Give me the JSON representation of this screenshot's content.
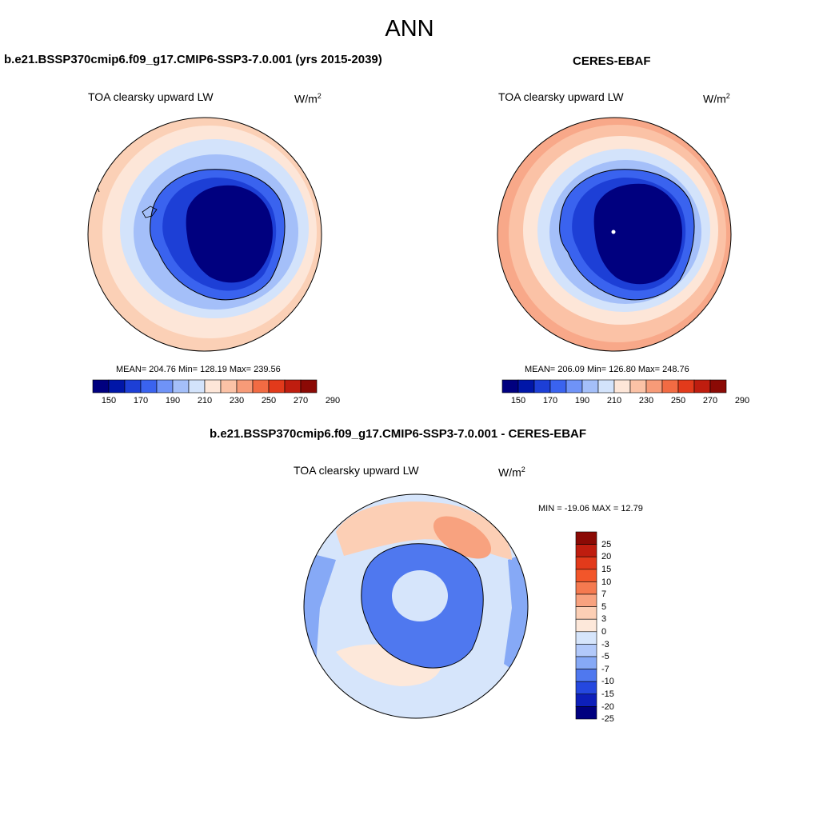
{
  "main_title": "ANN",
  "panels": [
    {
      "title": "b.e21.BSSP370cmip6.f09_g17.CMIP6-SSP3-7.0.001 (yrs 2015-2039)",
      "variable": "TOA clearsky upward LW",
      "units_base": "W/m",
      "units_exp": "2",
      "stats": "MEAN= 204.76  Min= 128.19  Max= 239.56",
      "colorbar_ticks": [
        "150",
        "170",
        "190",
        "210",
        "230",
        "250",
        "270",
        "290"
      ]
    },
    {
      "title": "CERES-EBAF",
      "variable": "TOA clearsky upward LW",
      "units_base": "W/m",
      "units_exp": "2",
      "stats": "MEAN= 206.09  Min= 126.80  Max= 248.76",
      "colorbar_ticks": [
        "150",
        "170",
        "190",
        "210",
        "230",
        "250",
        "270",
        "290"
      ]
    },
    {
      "title": "b.e21.BSSP370cmip6.f09_g17.CMIP6-SSP3-7.0.001 - CERES-EBAF",
      "variable": "TOA clearsky upward LW",
      "units_base": "W/m",
      "units_exp": "2",
      "stats": "MIN = -19.06 MAX =  12.79",
      "colorbar_ticks": [
        "25",
        "20",
        "15",
        "10",
        "7",
        "5",
        "3",
        "0",
        "-3",
        "-5",
        "-7",
        "-10",
        "-15",
        "-20",
        "-25"
      ]
    }
  ],
  "colors": {
    "abs_scale": [
      "#00007f",
      "#0016a8",
      "#1d3fd6",
      "#3a63ef",
      "#6f93f7",
      "#a4bff9",
      "#d3e3fb",
      "#fde6d8",
      "#fbc2a6",
      "#f79b78",
      "#f26b43",
      "#e23a1b",
      "#bf1d0f",
      "#8b0a05"
    ],
    "diff_scale": [
      "#8b0a05",
      "#bf1d0f",
      "#e23a1b",
      "#f2562a",
      "#f57a50",
      "#f8a27f",
      "#fccfb5",
      "#fde8da",
      "#d6e5fb",
      "#b2c9fa",
      "#86a9f6",
      "#4f78ef",
      "#2548df",
      "#0d1fba",
      "#00007f"
    ]
  }
}
